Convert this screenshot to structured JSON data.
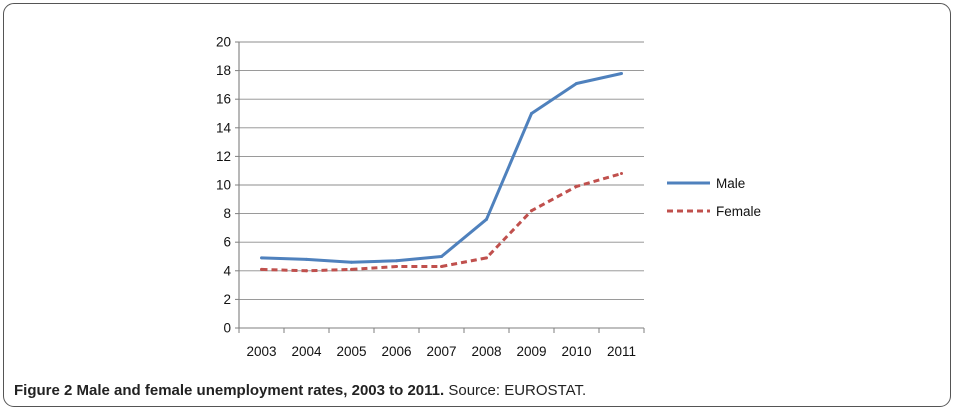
{
  "figure": {
    "label": "Figure 2 Male and female unemployment rates, 2003 to 2011.",
    "source": "Source: EUROSTAT."
  },
  "chart_data": {
    "type": "line",
    "title": "",
    "xlabel": "",
    "ylabel": "",
    "x": [
      "2003",
      "2004",
      "2005",
      "2006",
      "2007",
      "2008",
      "2009",
      "2010",
      "2011"
    ],
    "ylim": [
      0,
      20
    ],
    "yticks": [
      0,
      2,
      4,
      6,
      8,
      10,
      12,
      14,
      16,
      18,
      20
    ],
    "grid": true,
    "legend_position": "right",
    "series": [
      {
        "name": "Male",
        "color": "#4f81bd",
        "style": "solid",
        "values": [
          4.9,
          4.8,
          4.6,
          4.7,
          5.0,
          7.6,
          15.0,
          17.1,
          17.8
        ]
      },
      {
        "name": "Female",
        "color": "#c0504d",
        "style": "dashed",
        "values": [
          4.1,
          4.0,
          4.1,
          4.3,
          4.3,
          4.9,
          8.2,
          9.9,
          10.8
        ]
      }
    ]
  }
}
